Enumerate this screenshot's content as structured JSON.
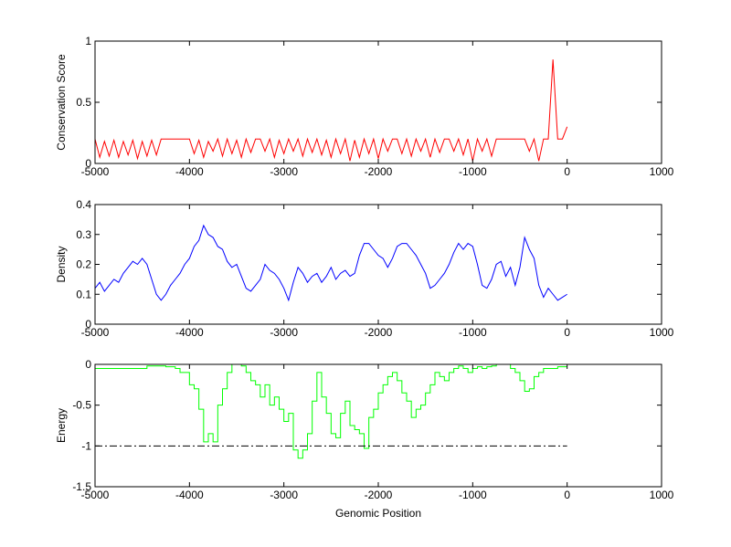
{
  "chart_data": [
    {
      "type": "line",
      "ylabel": "Conservation Score",
      "x": [
        -5000,
        -4950,
        -4900,
        -4850,
        -4800,
        -4750,
        -4700,
        -4650,
        -4600,
        -4550,
        -4500,
        -4450,
        -4400,
        -4350,
        -4300,
        -4250,
        -4200,
        -4150,
        -4100,
        -4050,
        -4000,
        -3950,
        -3900,
        -3850,
        -3800,
        -3750,
        -3700,
        -3650,
        -3600,
        -3550,
        -3500,
        -3450,
        -3400,
        -3350,
        -3300,
        -3250,
        -3200,
        -3150,
        -3100,
        -3050,
        -3000,
        -2950,
        -2900,
        -2850,
        -2800,
        -2750,
        -2700,
        -2650,
        -2600,
        -2550,
        -2500,
        -2450,
        -2400,
        -2350,
        -2300,
        -2250,
        -2200,
        -2150,
        -2100,
        -2050,
        -2000,
        -1950,
        -1900,
        -1850,
        -1800,
        -1750,
        -1700,
        -1650,
        -1600,
        -1550,
        -1500,
        -1450,
        -1400,
        -1350,
        -1300,
        -1250,
        -1200,
        -1150,
        -1100,
        -1050,
        -1000,
        -950,
        -900,
        -850,
        -800,
        -750,
        -700,
        -650,
        -600,
        -550,
        -500,
        -450,
        -400,
        -350,
        -300,
        -250,
        -200,
        -150,
        -100,
        -50,
        0
      ],
      "series": [
        {
          "color": "#ff0000",
          "values": [
            0.2,
            0.05,
            0.18,
            0.06,
            0.19,
            0.05,
            0.18,
            0.07,
            0.19,
            0.04,
            0.18,
            0.06,
            0.19,
            0.07,
            0.2,
            0.2,
            0.2,
            0.2,
            0.2,
            0.2,
            0.2,
            0.08,
            0.19,
            0.05,
            0.18,
            0.1,
            0.2,
            0.06,
            0.2,
            0.08,
            0.19,
            0.05,
            0.2,
            0.09,
            0.2,
            0.2,
            0.1,
            0.2,
            0.05,
            0.19,
            0.08,
            0.2,
            0.1,
            0.2,
            0.06,
            0.2,
            0.09,
            0.2,
            0.07,
            0.19,
            0.05,
            0.2,
            0.08,
            0.2,
            0.02,
            0.19,
            0.05,
            0.2,
            0.08,
            0.2,
            0.04,
            0.2,
            0.1,
            0.2,
            0.2,
            0.08,
            0.2,
            0.06,
            0.2,
            0.1,
            0.2,
            0.05,
            0.2,
            0.09,
            0.2,
            0.2,
            0.1,
            0.2,
            0.07,
            0.2,
            0.02,
            0.2,
            0.1,
            0.2,
            0.06,
            0.2,
            0.2,
            0.2,
            0.2,
            0.2,
            0.2,
            0.2,
            0.1,
            0.2,
            0.02,
            0.2,
            0.2,
            0.85,
            0.2,
            0.2,
            0.3
          ]
        }
      ],
      "xlim": [
        -5000,
        1000
      ],
      "xticks": [
        -5000,
        -4000,
        -3000,
        -2000,
        -1000,
        0,
        1000
      ],
      "ylim": [
        0,
        1
      ],
      "yticks": [
        0,
        0.5,
        1
      ]
    },
    {
      "type": "line",
      "ylabel": "Density",
      "x": [
        -5000,
        -4950,
        -4900,
        -4850,
        -4800,
        -4750,
        -4700,
        -4650,
        -4600,
        -4550,
        -4500,
        -4450,
        -4400,
        -4350,
        -4300,
        -4250,
        -4200,
        -4150,
        -4100,
        -4050,
        -4000,
        -3950,
        -3900,
        -3850,
        -3800,
        -3750,
        -3700,
        -3650,
        -3600,
        -3550,
        -3500,
        -3450,
        -3400,
        -3350,
        -3300,
        -3250,
        -3200,
        -3150,
        -3100,
        -3050,
        -3000,
        -2950,
        -2900,
        -2850,
        -2800,
        -2750,
        -2700,
        -2650,
        -2600,
        -2550,
        -2500,
        -2450,
        -2400,
        -2350,
        -2300,
        -2250,
        -2200,
        -2150,
        -2100,
        -2050,
        -2000,
        -1950,
        -1900,
        -1850,
        -1800,
        -1750,
        -1700,
        -1650,
        -1600,
        -1550,
        -1500,
        -1450,
        -1400,
        -1350,
        -1300,
        -1250,
        -1200,
        -1150,
        -1100,
        -1050,
        -1000,
        -950,
        -900,
        -850,
        -800,
        -750,
        -700,
        -650,
        -600,
        -550,
        -500,
        -450,
        -400,
        -350,
        -300,
        -250,
        -200,
        -150,
        -100,
        -50,
        0
      ],
      "series": [
        {
          "color": "#0000ff",
          "values": [
            0.12,
            0.14,
            0.11,
            0.13,
            0.15,
            0.14,
            0.17,
            0.19,
            0.21,
            0.2,
            0.22,
            0.2,
            0.15,
            0.1,
            0.08,
            0.1,
            0.13,
            0.15,
            0.17,
            0.2,
            0.22,
            0.26,
            0.28,
            0.33,
            0.3,
            0.29,
            0.26,
            0.25,
            0.21,
            0.19,
            0.2,
            0.16,
            0.12,
            0.11,
            0.13,
            0.15,
            0.2,
            0.18,
            0.17,
            0.15,
            0.12,
            0.08,
            0.14,
            0.19,
            0.17,
            0.14,
            0.16,
            0.17,
            0.14,
            0.16,
            0.19,
            0.15,
            0.17,
            0.18,
            0.16,
            0.17,
            0.23,
            0.27,
            0.27,
            0.25,
            0.23,
            0.22,
            0.19,
            0.22,
            0.26,
            0.27,
            0.27,
            0.25,
            0.23,
            0.2,
            0.17,
            0.12,
            0.13,
            0.15,
            0.17,
            0.2,
            0.24,
            0.27,
            0.25,
            0.27,
            0.26,
            0.2,
            0.13,
            0.12,
            0.15,
            0.2,
            0.21,
            0.16,
            0.19,
            0.13,
            0.19,
            0.29,
            0.25,
            0.22,
            0.13,
            0.09,
            0.12,
            0.1,
            0.08,
            0.09,
            0.1
          ]
        }
      ],
      "xlim": [
        -5000,
        1000
      ],
      "xticks": [
        -5000,
        -4000,
        -3000,
        -2000,
        -1000,
        0,
        1000
      ],
      "ylim": [
        0,
        0.4
      ],
      "yticks": [
        0,
        0.1,
        0.2,
        0.3,
        0.4
      ]
    },
    {
      "type": "step",
      "ylabel": "Energy",
      "xlabel": "Genomic Position",
      "x": [
        -5000,
        -4950,
        -4900,
        -4850,
        -4800,
        -4750,
        -4700,
        -4650,
        -4600,
        -4550,
        -4500,
        -4450,
        -4400,
        -4350,
        -4300,
        -4250,
        -4200,
        -4150,
        -4100,
        -4050,
        -4000,
        -3950,
        -3900,
        -3850,
        -3800,
        -3750,
        -3700,
        -3650,
        -3600,
        -3550,
        -3500,
        -3450,
        -3400,
        -3350,
        -3300,
        -3250,
        -3200,
        -3150,
        -3100,
        -3050,
        -3000,
        -2950,
        -2900,
        -2850,
        -2800,
        -2750,
        -2700,
        -2650,
        -2600,
        -2550,
        -2500,
        -2450,
        -2400,
        -2350,
        -2300,
        -2250,
        -2200,
        -2150,
        -2100,
        -2050,
        -2000,
        -1950,
        -1900,
        -1850,
        -1800,
        -1750,
        -1700,
        -1650,
        -1600,
        -1550,
        -1500,
        -1450,
        -1400,
        -1350,
        -1300,
        -1250,
        -1200,
        -1150,
        -1100,
        -1050,
        -1000,
        -950,
        -900,
        -850,
        -800,
        -750,
        -700,
        -650,
        -600,
        -550,
        -500,
        -450,
        -400,
        -350,
        -300,
        -250,
        -200,
        -150,
        -100,
        -50,
        0
      ],
      "series": [
        {
          "color": "#00ff00",
          "values": [
            -0.05,
            -0.05,
            -0.05,
            -0.05,
            -0.05,
            -0.05,
            -0.05,
            -0.05,
            -0.05,
            -0.05,
            -0.05,
            -0.02,
            -0.02,
            -0.02,
            -0.02,
            -0.03,
            -0.03,
            -0.05,
            -0.1,
            -0.1,
            -0.25,
            -0.3,
            -0.55,
            -0.95,
            -0.85,
            -0.95,
            -0.5,
            -0.3,
            -0.1,
            0,
            0,
            -0.02,
            -0.1,
            -0.2,
            -0.25,
            -0.4,
            -0.25,
            -0.5,
            -0.4,
            -0.55,
            -0.7,
            -0.6,
            -1.05,
            -1.15,
            -1.05,
            -0.85,
            -0.45,
            -0.1,
            -0.4,
            -0.6,
            -0.85,
            -0.9,
            -0.6,
            -0.45,
            -0.75,
            -0.8,
            -0.85,
            -1.03,
            -0.65,
            -0.55,
            -0.35,
            -0.25,
            -0.15,
            -0.1,
            -0.2,
            -0.35,
            -0.45,
            -0.65,
            -0.55,
            -0.5,
            -0.35,
            -0.25,
            -0.1,
            -0.15,
            -0.2,
            -0.1,
            -0.05,
            -0.02,
            -0.05,
            -0.1,
            -0.05,
            -0.03,
            -0.05,
            -0.03,
            -0.02,
            0,
            0,
            0,
            -0.05,
            -0.1,
            -0.2,
            -0.33,
            -0.3,
            -0.15,
            -0.1,
            -0.05,
            -0.05,
            -0.05,
            -0.03,
            -0.03,
            -0.03
          ]
        },
        {
          "color": "#000000",
          "dash": "dash-dot",
          "x": [
            -5000,
            0
          ],
          "values": [
            -1,
            -1
          ]
        }
      ],
      "xlim": [
        -5000,
        1000
      ],
      "xticks": [
        -5000,
        -4000,
        -3000,
        -2000,
        -1000,
        0,
        1000
      ],
      "ylim": [
        -1.5,
        0
      ],
      "yticks": [
        -1.5,
        -1,
        -0.5,
        0
      ]
    }
  ]
}
